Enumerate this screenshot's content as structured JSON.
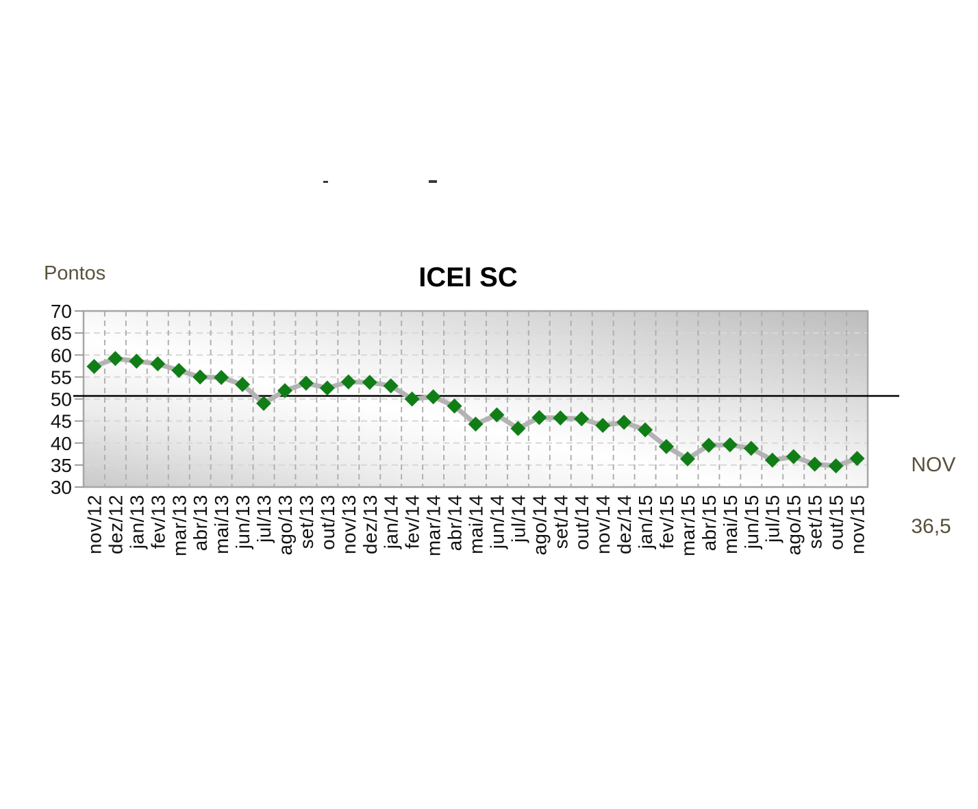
{
  "chart_data": {
    "type": "line",
    "title": "ICEI SC",
    "ylabel": "Pontos",
    "xlabel": "",
    "categories": [
      "nov/12",
      "dez/12",
      "jan/13",
      "fev/13",
      "mar/13",
      "abr/13",
      "mai/13",
      "jun/13",
      "jul/13",
      "ago/13",
      "set/13",
      "out/13",
      "nov/13",
      "dez/13",
      "jan/14",
      "fev/14",
      "mar/14",
      "abr/14",
      "mai/14",
      "jun/14",
      "jul/14",
      "ago/14",
      "set/14",
      "out/14",
      "nov/14",
      "dez/14",
      "jan/15",
      "fev/15",
      "mar/15",
      "abr/15",
      "mai/15",
      "jun/15",
      "jul/15",
      "ago/15",
      "set/15",
      "out/15",
      "nov/15"
    ],
    "series": [
      {
        "name": "ICEI SC",
        "values": [
          57.4,
          59.2,
          58.6,
          58.0,
          56.5,
          55.0,
          54.9,
          53.3,
          49.0,
          51.9,
          53.6,
          52.5,
          53.9,
          53.8,
          53.0,
          50.0,
          50.5,
          48.4,
          44.3,
          46.4,
          43.3,
          45.8,
          45.7,
          45.5,
          44.0,
          44.7,
          43.0,
          39.2,
          36.4,
          39.5,
          39.6,
          38.8,
          36.1,
          36.9,
          35.2,
          34.8,
          36.5
        ]
      }
    ],
    "ylim": [
      30,
      70
    ],
    "yticks": [
      30,
      35,
      40,
      45,
      50,
      55,
      60,
      65,
      70
    ],
    "reference_line_value": 50.7,
    "grid": true,
    "legend_position": "none",
    "annotation": {
      "text": "NOV",
      "value": "36,5"
    },
    "colors": {
      "marker": "#117d17",
      "line": "#b3b3b3",
      "reference_line": "#000000",
      "annotation_text": "#57503a",
      "axis_text": "#111111",
      "plot_border": "#a6a6a6",
      "vertical_grid": "#b0b0b0",
      "horizontal_grid": "#d8d8d8"
    }
  }
}
